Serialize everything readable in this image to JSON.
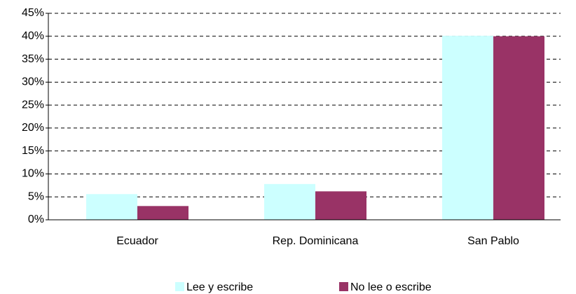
{
  "chart_data": {
    "type": "bar",
    "categories": [
      "Ecuador",
      "Rep. Dominicana",
      "San Pablo"
    ],
    "series": [
      {
        "name": "Lee y escribe",
        "color": "#ccffff",
        "values": [
          5.6,
          7.8,
          40.1
        ]
      },
      {
        "name": "No lee o escribe",
        "color": "#993366",
        "values": [
          3.0,
          6.2,
          40.0
        ]
      }
    ],
    "ylim": [
      0,
      45
    ],
    "yticks": [
      {
        "value": 0,
        "label": "0%"
      },
      {
        "value": 5,
        "label": "5%"
      },
      {
        "value": 10,
        "label": "10%"
      },
      {
        "value": 15,
        "label": "15%"
      },
      {
        "value": 20,
        "label": "20%"
      },
      {
        "value": 25,
        "label": "25%"
      },
      {
        "value": 30,
        "label": "30%"
      },
      {
        "value": 35,
        "label": "35%"
      },
      {
        "value": 40,
        "label": "40%"
      },
      {
        "value": 45,
        "label": "45%"
      }
    ],
    "grid": true,
    "legend": "bottom"
  }
}
